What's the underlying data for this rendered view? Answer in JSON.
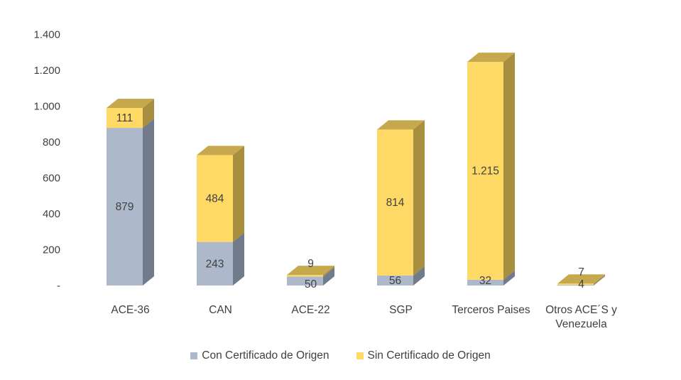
{
  "colors": {
    "con_front": "#ADB9CA",
    "con_side": "#717B8B",
    "con_top": "#8C97A8",
    "sin_front": "#FFD966",
    "sin_side": "#A88F3F",
    "sin_top": "#C7A94D"
  },
  "chart_data": {
    "type": "bar",
    "stacked": true,
    "three_d": true,
    "categories": [
      [
        "ACE-36"
      ],
      [
        "CAN"
      ],
      [
        "ACE-22"
      ],
      [
        "SGP"
      ],
      [
        "Terceros Paises"
      ],
      [
        "Otros ACE´S y",
        "Venezuela"
      ]
    ],
    "series": [
      {
        "name": "Con Certificado de Origen",
        "values": [
          879,
          243,
          50,
          56,
          32,
          4
        ]
      },
      {
        "name": "Sin Certificado de Origen",
        "values": [
          111,
          484,
          9,
          814,
          1215,
          7
        ]
      }
    ],
    "data_labels": [
      [
        "879",
        "243",
        "50",
        "56",
        "32",
        "4"
      ],
      [
        "111",
        "484",
        "9",
        "814",
        "1.215",
        "7"
      ]
    ],
    "ylim": [
      0,
      1400
    ],
    "yticks": [
      0,
      200,
      400,
      600,
      800,
      1000,
      1200,
      1400
    ],
    "ytick_labels": [
      "-",
      "200",
      "400",
      "600",
      "800",
      "1.000",
      "1.200",
      "1.400"
    ],
    "grid": false,
    "legend_position": "bottom"
  }
}
